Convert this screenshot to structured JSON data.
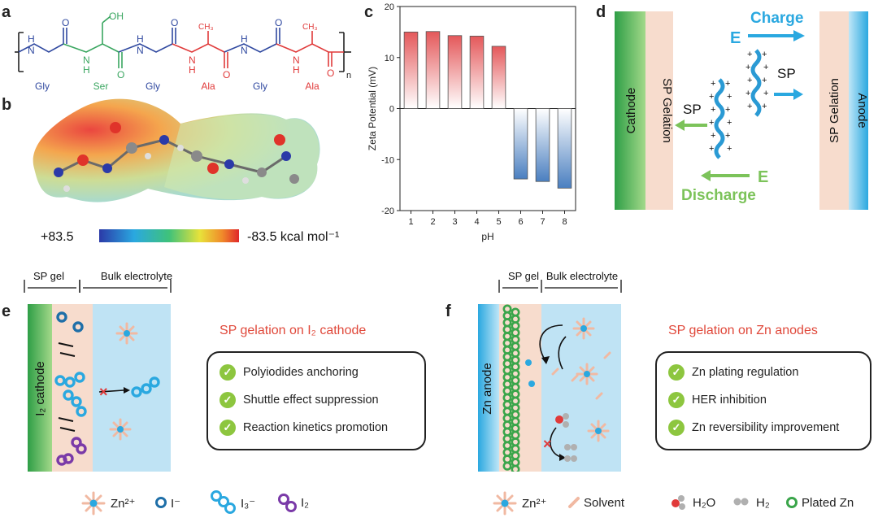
{
  "panels": {
    "a": "a",
    "b": "b",
    "c": "c",
    "d": "d",
    "e": "e",
    "f": "f"
  },
  "panel_a": {
    "residues": [
      "Gly",
      "Ser",
      "Gly",
      "Ala",
      "Gly",
      "Ala"
    ],
    "side_oh": "OH",
    "repeat": "n",
    "colors": {
      "gly": "#3049a0",
      "ser": "#3aa660",
      "ala": "#e03a3a"
    }
  },
  "panel_b": {
    "scale_max": "+83.5",
    "scale_min": "-83.5 kcal mol⁻¹"
  },
  "chart_data": {
    "type": "bar",
    "categories": [
      "1",
      "2",
      "3",
      "4",
      "5",
      "6",
      "7",
      "8"
    ],
    "values": [
      15.0,
      15.1,
      14.3,
      14.2,
      12.2,
      -13.8,
      -14.3,
      -15.6
    ],
    "title": "",
    "xlabel": "pH",
    "ylabel": "Zeta Potential (mV)",
    "ylim": [
      -20,
      20
    ],
    "yticks": [
      "20",
      "10",
      "0",
      "-10",
      "-20"
    ]
  },
  "panel_d": {
    "cathode": "Cathode",
    "anode": "Anode",
    "gelation_left": "SP Gelation",
    "gelation_right": "SP Gelation",
    "charge": "Charge",
    "discharge": "Discharge",
    "e_top": "E",
    "e_bottom": "E",
    "sp_left": "SP",
    "sp_right": "SP"
  },
  "panel_e": {
    "sp_gel": "SP gel",
    "bulk": "Bulk electrolyte",
    "electrode": "I₂ cathode",
    "title": "SP gelation on I₂ cathode",
    "items": [
      "Polyiodides anchoring",
      "Shuttle effect suppression",
      "Reaction kinetics promotion"
    ]
  },
  "panel_f": {
    "sp_gel": "SP gel",
    "bulk": "Bulk electrolyte",
    "electrode": "Zn anode",
    "title": "SP gelation on Zn anodes",
    "items": [
      "Zn plating regulation",
      "HER inhibition",
      "Zn reversibility improvement"
    ]
  },
  "legend_e": {
    "zn": "Zn²⁺",
    "i_minus": "I⁻",
    "i3": "I₃⁻",
    "i2": "I₂"
  },
  "legend_f": {
    "zn": "Zn²⁺",
    "solvent": "Solvent",
    "h2o": "H₂O",
    "h2": "H₂",
    "plated": "Plated Zn"
  }
}
